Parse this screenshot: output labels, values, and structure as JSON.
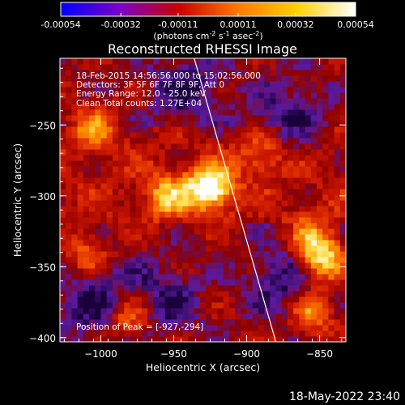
{
  "colorbar": {
    "ticks": [
      {
        "value": -0.00054,
        "label": "-0.00054"
      },
      {
        "value": -0.00032,
        "label": "-0.00032"
      },
      {
        "value": -0.00011,
        "label": "-0.00011"
      },
      {
        "value": 0.00011,
        "label": "0.00011"
      },
      {
        "value": 0.00032,
        "label": "0.00032"
      },
      {
        "value": 0.00054,
        "label": "0.00054"
      }
    ],
    "range": [
      -0.00054,
      0.00054
    ],
    "units_prefix": "(photons cm",
    "units_exp1": "-2",
    "units_mid": " s",
    "units_exp2": "-1",
    "units_mid2": " asec",
    "units_exp3": "-2",
    "units_suffix": ")",
    "colors": [
      "#0000ff",
      "#7b00c8",
      "#c80000",
      "#ff7800",
      "#ffd000",
      "#ffffff"
    ]
  },
  "chart_data": {
    "type": "heatmap",
    "title": "Reconstructed RHESSI Image",
    "xlabel": "Heliocentric X (arcsec)",
    "ylabel": "Heliocentric Y (arcsec)",
    "xlim": [
      -1028,
      -832
    ],
    "ylim": [
      -403,
      -203
    ],
    "x_ticks": [
      -1000,
      -950,
      -900,
      -850
    ],
    "y_ticks": [
      -250,
      -300,
      -350,
      -400
    ],
    "peak": {
      "x": -927,
      "y": -294
    },
    "bright_sources": [
      {
        "x": -925,
        "y": -294,
        "level": 1.0
      },
      {
        "x": -955,
        "y": -300,
        "level": 0.55
      },
      {
        "x": -848,
        "y": -345,
        "level": 0.7
      },
      {
        "x": -855,
        "y": -330,
        "level": 0.5
      },
      {
        "x": -980,
        "y": -385,
        "level": 0.6
      },
      {
        "x": -855,
        "y": -382,
        "level": 0.55
      },
      {
        "x": -1005,
        "y": -250,
        "level": 0.45
      },
      {
        "x": -890,
        "y": -270,
        "level": 0.4
      },
      {
        "x": -1010,
        "y": -340,
        "level": 0.4
      }
    ],
    "dark_regions": [
      {
        "x": -960,
        "y": -375
      },
      {
        "x": -1005,
        "y": -375
      },
      {
        "x": -875,
        "y": -360
      },
      {
        "x": -940,
        "y": -225
      },
      {
        "x": -870,
        "y": -245
      }
    ],
    "limb_line": {
      "x_start": -936,
      "y_start": -203,
      "x_end": -880,
      "y_end": -403
    }
  },
  "annotations": {
    "time_range": "18-Feb-2015 14:56:56.000 to 15:02:56.000",
    "detectors": "Detectors: 3F 5F 6F 7F 8F 9F, Att 0",
    "energy": "Energy Range: 12.0 - 25.0 keV",
    "clean": "Clean     Total counts: 1.27E+04",
    "peak": "Position of Peak = [-927,-294]"
  },
  "footer": {
    "date": "18-May-2022 23:40"
  }
}
